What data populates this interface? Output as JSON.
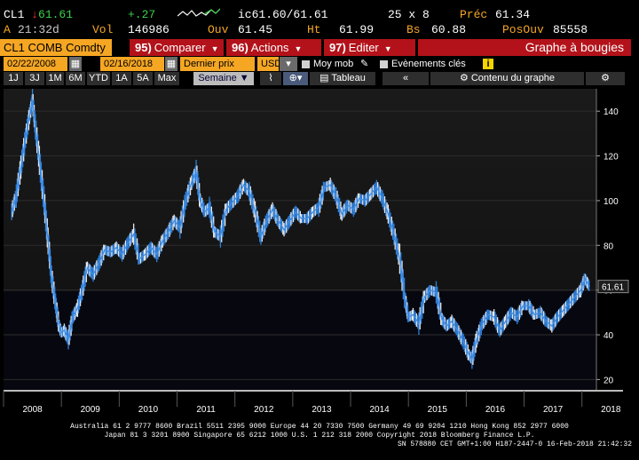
{
  "header": {
    "ticker": "CL1",
    "last": "61.61",
    "change": "+.27",
    "ic": "ic61.60/61.61",
    "size": "25 x 8",
    "prec_label": "Préc",
    "prec": "61.34",
    "row2_prefix": "A",
    "time": "21:32d",
    "vol_label": "Vol",
    "vol": "146986",
    "ouv_label": "Ouv",
    "ouv": "61.45",
    "ht_label": "Ht",
    "ht": "61.99",
    "bs_label": "Bs",
    "bs": "60.88",
    "posouv_label": "PosOuv",
    "posouv": "85558"
  },
  "menu": {
    "security": "CL1 COMB Comdty",
    "compare_num": "95)",
    "compare": "Comparer",
    "actions_num": "96)",
    "actions": "Actions",
    "edit_num": "97)",
    "edit": "Editer",
    "chart_type": "Graphe à bougies"
  },
  "toolbar": {
    "start_date": "02/22/2008",
    "end_date": "02/16/2018",
    "price": "Dernier prix",
    "currency": "USD",
    "moy_mob": "Moy mob",
    "events": "Evènements clés",
    "events_btn": "i"
  },
  "periods": {
    "items": [
      "1J",
      "3J",
      "1M",
      "6M",
      "YTD",
      "1A",
      "5A",
      "Max"
    ],
    "interval": "Semaine",
    "table": "Tableau",
    "back": "«",
    "content": "Contenu du graphe"
  },
  "chart_data": {
    "type": "line",
    "title": "",
    "xlabel": "",
    "ylabel": "",
    "x_ticks": [
      "2008",
      "2009",
      "2010",
      "2011",
      "2012",
      "2013",
      "2014",
      "2015",
      "2016",
      "2017",
      "2018"
    ],
    "y_ticks": [
      20,
      40,
      60,
      80,
      100,
      120,
      140
    ],
    "ylim": [
      15,
      150
    ],
    "xlim": [
      2008.0,
      2018.25
    ],
    "last_value_label": "61.61",
    "series": [
      {
        "points": [
          [
            2008.14,
            95
          ],
          [
            2008.22,
            102
          ],
          [
            2008.3,
            115
          ],
          [
            2008.38,
            128
          ],
          [
            2008.45,
            138
          ],
          [
            2008.5,
            145
          ],
          [
            2008.55,
            133
          ],
          [
            2008.62,
            118
          ],
          [
            2008.7,
            100
          ],
          [
            2008.77,
            82
          ],
          [
            2008.83,
            66
          ],
          [
            2008.9,
            54
          ],
          [
            2008.96,
            44
          ],
          [
            2009.0,
            41
          ],
          [
            2009.05,
            42
          ],
          [
            2009.12,
            38
          ],
          [
            2009.2,
            48
          ],
          [
            2009.28,
            52
          ],
          [
            2009.36,
            60
          ],
          [
            2009.45,
            70
          ],
          [
            2009.55,
            67
          ],
          [
            2009.65,
            72
          ],
          [
            2009.75,
            78
          ],
          [
            2009.85,
            77
          ],
          [
            2009.95,
            79
          ],
          [
            2010.05,
            76
          ],
          [
            2010.15,
            81
          ],
          [
            2010.25,
            85
          ],
          [
            2010.35,
            74
          ],
          [
            2010.45,
            76
          ],
          [
            2010.55,
            79
          ],
          [
            2010.65,
            76
          ],
          [
            2010.75,
            82
          ],
          [
            2010.85,
            86
          ],
          [
            2010.95,
            91
          ],
          [
            2011.05,
            88
          ],
          [
            2011.15,
            100
          ],
          [
            2011.25,
            108
          ],
          [
            2011.33,
            113
          ],
          [
            2011.4,
            100
          ],
          [
            2011.48,
            95
          ],
          [
            2011.56,
            97
          ],
          [
            2011.65,
            86
          ],
          [
            2011.75,
            84
          ],
          [
            2011.85,
            96
          ],
          [
            2011.95,
            99
          ],
          [
            2012.05,
            102
          ],
          [
            2012.15,
            107
          ],
          [
            2012.25,
            104
          ],
          [
            2012.35,
            95
          ],
          [
            2012.45,
            84
          ],
          [
            2012.55,
            91
          ],
          [
            2012.65,
            96
          ],
          [
            2012.75,
            91
          ],
          [
            2012.85,
            87
          ],
          [
            2012.95,
            91
          ],
          [
            2013.05,
            95
          ],
          [
            2013.15,
            92
          ],
          [
            2013.25,
            92
          ],
          [
            2013.35,
            95
          ],
          [
            2013.45,
            97
          ],
          [
            2013.55,
            106
          ],
          [
            2013.65,
            107
          ],
          [
            2013.75,
            102
          ],
          [
            2013.85,
            94
          ],
          [
            2013.95,
            98
          ],
          [
            2014.05,
            96
          ],
          [
            2014.15,
            101
          ],
          [
            2014.25,
            100
          ],
          [
            2014.35,
            103
          ],
          [
            2014.45,
            106
          ],
          [
            2014.55,
            101
          ],
          [
            2014.65,
            94
          ],
          [
            2014.75,
            85
          ],
          [
            2014.85,
            74
          ],
          [
            2014.95,
            55
          ],
          [
            2015.0,
            48
          ],
          [
            2015.08,
            49
          ],
          [
            2015.18,
            45
          ],
          [
            2015.28,
            57
          ],
          [
            2015.38,
            60
          ],
          [
            2015.48,
            59
          ],
          [
            2015.58,
            47
          ],
          [
            2015.66,
            44
          ],
          [
            2015.75,
            46
          ],
          [
            2015.85,
            42
          ],
          [
            2015.95,
            37
          ],
          [
            2016.05,
            31
          ],
          [
            2016.1,
            29
          ],
          [
            2016.18,
            38
          ],
          [
            2016.28,
            45
          ],
          [
            2016.38,
            49
          ],
          [
            2016.48,
            48
          ],
          [
            2016.58,
            42
          ],
          [
            2016.68,
            46
          ],
          [
            2016.78,
            50
          ],
          [
            2016.88,
            48
          ],
          [
            2016.98,
            53
          ],
          [
            2017.08,
            53
          ],
          [
            2017.18,
            49
          ],
          [
            2017.28,
            50
          ],
          [
            2017.38,
            46
          ],
          [
            2017.48,
            44
          ],
          [
            2017.58,
            48
          ],
          [
            2017.68,
            51
          ],
          [
            2017.78,
            54
          ],
          [
            2017.88,
            57
          ],
          [
            2017.98,
            60
          ],
          [
            2018.05,
            65
          ],
          [
            2018.1,
            63
          ],
          [
            2018.13,
            61.61
          ]
        ]
      }
    ]
  },
  "footer": {
    "line1": "Australia 61 2 9777 8600 Brazil 5511 2395 9000 Europe 44 20 7330 7500 Germany 49 69 9204 1210 Hong Kong 852 2977 6000",
    "line2": "Japan 81 3 3201 8900        Singapore 65 6212 1000        U.S. 1 212 318 2000        Copyright 2018 Bloomberg Finance L.P.",
    "line3": "SN 578880 CET  GMT+1:00 H187-2447-0 16-Feb-2018 21:42:32"
  }
}
